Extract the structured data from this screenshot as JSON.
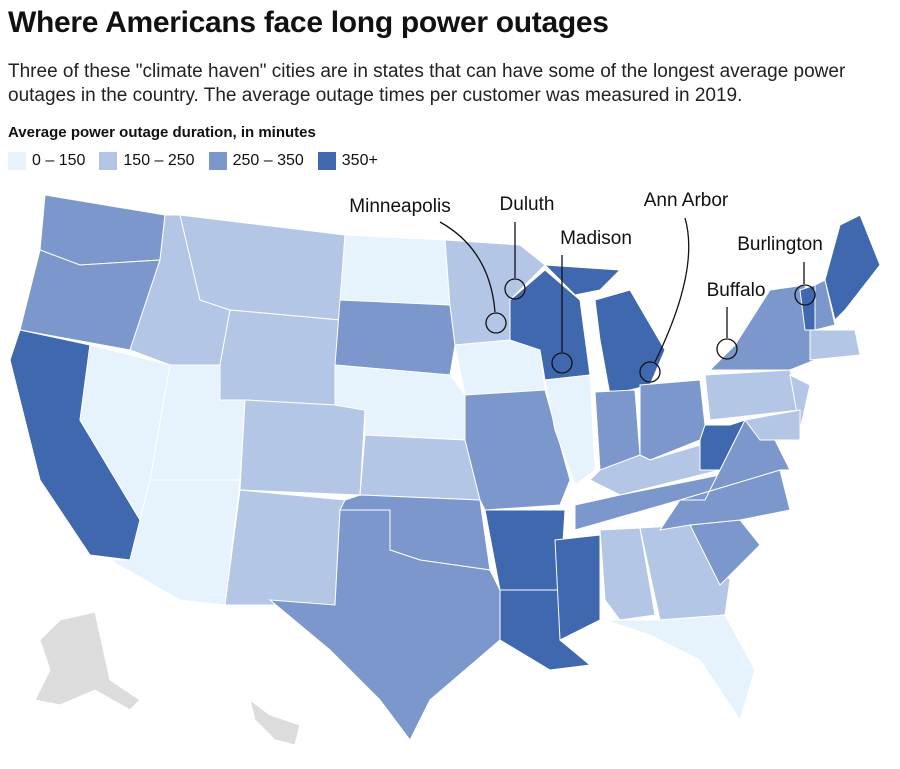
{
  "header": {
    "title": "Where Americans face long power outages",
    "subtitle": "Three of these \"climate haven\" cities are in states that can have some of the longest average power outages in the country. The average outage times per customer was measured in 2019."
  },
  "legend": {
    "title": "Average power outage duration, in minutes",
    "items": [
      {
        "label": "0 – 150",
        "color": "#e6f2fc"
      },
      {
        "label": "150 – 250",
        "color": "#b3c6e5"
      },
      {
        "label": "250 – 350",
        "color": "#7b97cb"
      },
      {
        "label": "350+",
        "color": "#3f68ae"
      }
    ]
  },
  "cities": [
    "Minneapolis",
    "Duluth",
    "Madison",
    "Ann Arbor",
    "Buffalo",
    "Burlington"
  ]
}
